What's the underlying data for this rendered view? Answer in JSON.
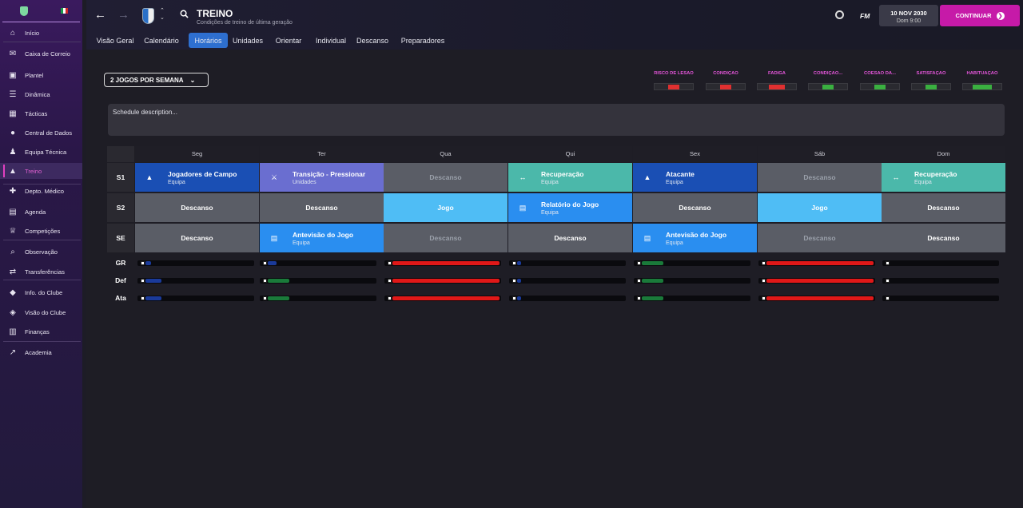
{
  "sidebar": {
    "items": [
      {
        "label": "Início",
        "icon": "home-icon"
      },
      {
        "label": "Caixa de Correio",
        "icon": "inbox-icon"
      },
      {
        "label": "Plantel",
        "icon": "shirt-icon"
      },
      {
        "label": "Dinâmica",
        "icon": "dynamics-icon"
      },
      {
        "label": "Tácticas",
        "icon": "tactics-icon"
      },
      {
        "label": "Central de Dados",
        "icon": "data-icon"
      },
      {
        "label": "Equipa Técnica",
        "icon": "staff-icon"
      },
      {
        "label": "Treino",
        "icon": "training-icon",
        "active": true
      },
      {
        "label": "Depto. Médico",
        "icon": "medical-icon"
      },
      {
        "label": "Agenda",
        "icon": "calendar-icon"
      },
      {
        "label": "Competições",
        "icon": "trophy-icon"
      },
      {
        "label": "Observação",
        "icon": "scouting-icon"
      },
      {
        "label": "Transferências",
        "icon": "transfer-icon"
      },
      {
        "label": "Info. do Clube",
        "icon": "club-icon"
      },
      {
        "label": "Visão do Clube",
        "icon": "vision-icon"
      },
      {
        "label": "Finanças",
        "icon": "finance-icon"
      },
      {
        "label": "Academia",
        "icon": "academy-icon"
      }
    ]
  },
  "header": {
    "title": "TREINO",
    "subtitle": "Condições de treino de última geração",
    "fm_label": "FM",
    "date": "10 NOV 2030",
    "day_time": "Dom 9:00",
    "continue_label": "CONTINUAR"
  },
  "tabs": [
    "Visão Geral",
    "Calendário",
    "Horários",
    "Unidades",
    "Orientar",
    "Individual",
    "Descanso",
    "Preparadores"
  ],
  "active_tab": "Horários",
  "schedule": {
    "dropdown_label": "2 JOGOS POR SEMANA",
    "description_placeholder": "Schedule description...",
    "days": [
      "Seg",
      "Ter",
      "Qua",
      "Qui",
      "Sex",
      "Sáb",
      "Dom"
    ],
    "rows": [
      {
        "label": "S1",
        "cells": [
          {
            "title": "Jogadores de Campo",
            "sub": "Equipa",
            "kind": "session",
            "color": "#1a4fb4",
            "icon": "cone-icon"
          },
          {
            "title": "Transição - Pressionar",
            "sub": "Unidades",
            "kind": "session",
            "color": "#6a6ed0",
            "icon": "runner-icon"
          },
          {
            "title": "Descanso",
            "sub": "",
            "kind": "rest-dim"
          },
          {
            "title": "Recuperação",
            "sub": "Equipa",
            "kind": "session",
            "color": "#4bb8aa",
            "icon": "recovery-icon"
          },
          {
            "title": "Atacante",
            "sub": "Equipa",
            "kind": "session",
            "color": "#1a4fb4",
            "icon": "cone-icon"
          },
          {
            "title": "Descanso",
            "sub": "",
            "kind": "rest-dim"
          },
          {
            "title": "Recuperação",
            "sub": "Equipa",
            "kind": "session",
            "color": "#4bb8aa",
            "icon": "recovery-icon"
          }
        ]
      },
      {
        "label": "S2",
        "cells": [
          {
            "title": "Descanso",
            "sub": "",
            "kind": "rest"
          },
          {
            "title": "Descanso",
            "sub": "",
            "kind": "rest"
          },
          {
            "title": "Jogo",
            "sub": "",
            "kind": "match"
          },
          {
            "title": "Relatório do Jogo",
            "sub": "Equipa",
            "kind": "session",
            "color": "#2a8ef0",
            "icon": "report-icon"
          },
          {
            "title": "Descanso",
            "sub": "",
            "kind": "rest"
          },
          {
            "title": "Jogo",
            "sub": "",
            "kind": "match"
          },
          {
            "title": "Descanso",
            "sub": "",
            "kind": "rest"
          }
        ]
      },
      {
        "label": "SE",
        "cells": [
          {
            "title": "Descanso",
            "sub": "",
            "kind": "rest"
          },
          {
            "title": "Antevisão do Jogo",
            "sub": "Equipa",
            "kind": "session",
            "color": "#2a8ef0",
            "icon": "report-icon"
          },
          {
            "title": "Descanso",
            "sub": "",
            "kind": "rest-dim"
          },
          {
            "title": "Descanso",
            "sub": "",
            "kind": "rest"
          },
          {
            "title": "Antevisão do Jogo",
            "sub": "Equipa",
            "kind": "session",
            "color": "#2a8ef0",
            "icon": "report-icon"
          },
          {
            "title": "Descanso",
            "sub": "",
            "kind": "rest-dim"
          },
          {
            "title": "Descanso",
            "sub": "",
            "kind": "rest"
          }
        ]
      }
    ]
  },
  "metrics": [
    {
      "label": "RISCO DE LESÃO",
      "level": 0.3,
      "color": "#e03030"
    },
    {
      "label": "CONDIÇÃO",
      "level": 0.3,
      "color": "#e03030"
    },
    {
      "label": "FADIGA",
      "level": 0.4,
      "color": "#e03030"
    },
    {
      "label": "CONDIÇÃO...",
      "level": 0.3,
      "color": "#3ab040"
    },
    {
      "label": "COESÃO DA...",
      "level": 0.3,
      "color": "#3ab040"
    },
    {
      "label": "SATISFAÇÃO",
      "level": 0.3,
      "color": "#3ab040"
    },
    {
      "label": "HABITUAÇÃO",
      "level": 0.5,
      "color": "#3ab040"
    }
  ],
  "load": {
    "rows": [
      {
        "label": "GR",
        "values": [
          0.05,
          0.08,
          1.0,
          0.04,
          0.2,
          1.0,
          0.0
        ]
      },
      {
        "label": "Def",
        "values": [
          0.15,
          0.2,
          1.0,
          0.04,
          0.2,
          1.0,
          0.0
        ]
      },
      {
        "label": "Ata",
        "values": [
          0.15,
          0.2,
          1.0,
          0.04,
          0.2,
          1.0,
          0.0
        ]
      }
    ],
    "colors": [
      [
        "#1a3a9a",
        "#1a3a9a",
        "#e01818",
        "#1a3a9a",
        "#1a7a3a",
        "#e01818",
        "#1a3a9a"
      ],
      [
        "#1a3a9a",
        "#1a7a3a",
        "#e01818",
        "#1a3a9a",
        "#1a7a3a",
        "#e01818",
        "#1a3a9a"
      ],
      [
        "#1a3a9a",
        "#1a7a3a",
        "#e01818",
        "#1a3a9a",
        "#1a7a3a",
        "#e01818",
        "#1a3a9a"
      ]
    ]
  }
}
